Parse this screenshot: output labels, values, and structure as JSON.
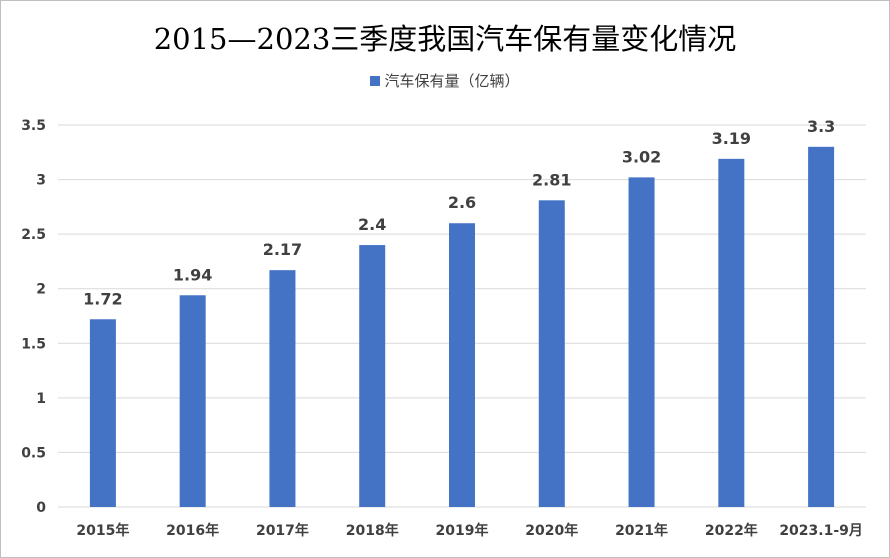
{
  "chart_data": {
    "type": "bar",
    "title": "2015—2023三季度我国汽车保有量变化情况",
    "legend": {
      "position": "top",
      "entries": [
        "汽车保有量（亿辆）"
      ]
    },
    "categories": [
      "2015年",
      "2016年",
      "2017年",
      "2018年",
      "2019年",
      "2020年",
      "2021年",
      "2022年",
      "2023.1-9月"
    ],
    "series": [
      {
        "name": "汽车保有量（亿辆）",
        "values": [
          1.72,
          1.94,
          2.17,
          2.4,
          2.6,
          2.81,
          3.02,
          3.19,
          3.3
        ],
        "color": "#4472C4"
      }
    ],
    "ylim": [
      0,
      3.5
    ],
    "yticks": [
      0,
      0.5,
      1,
      1.5,
      2,
      2.5,
      3,
      3.5
    ],
    "ytick_labels": [
      "0",
      "0.5",
      "1",
      "1.5",
      "2",
      "2.5",
      "3",
      "3.5"
    ],
    "grid": true,
    "data_labels": [
      "1.72",
      "1.94",
      "2.17",
      "2.4",
      "2.6",
      "2.81",
      "3.02",
      "3.19",
      "3.3"
    ]
  }
}
